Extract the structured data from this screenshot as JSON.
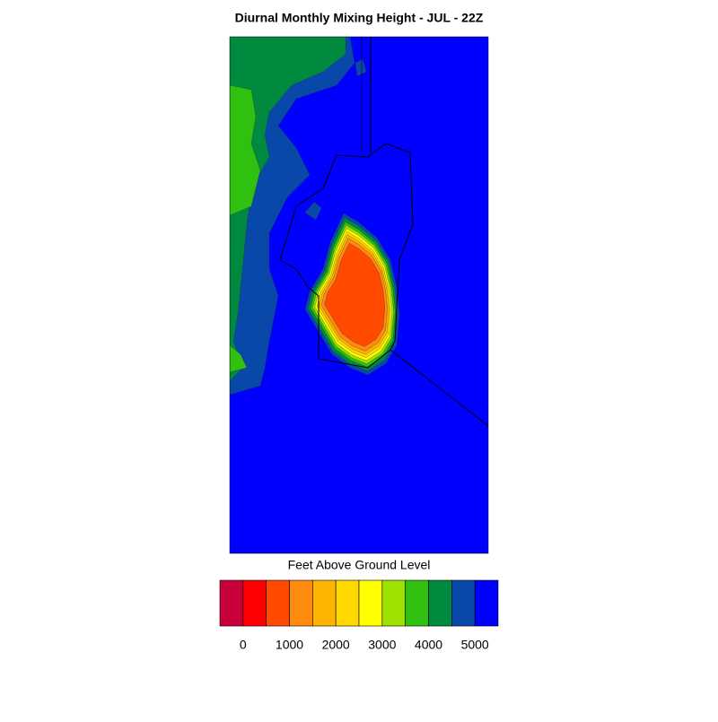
{
  "title": "Diurnal Monthly Mixing Height - JUL - 22Z",
  "colorbar": {
    "label": "Feet Above Ground Level",
    "colors": [
      "#c8003c",
      "#ff0000",
      "#ff4a00",
      "#ff8a10",
      "#ffb400",
      "#ffd800",
      "#ffff00",
      "#9ee000",
      "#30c010",
      "#008a40",
      "#0848a8",
      "#0000ff"
    ],
    "range": [
      -500,
      5500
    ],
    "ticks": [
      0,
      1000,
      2000,
      3000,
      4000,
      5000
    ]
  }
}
